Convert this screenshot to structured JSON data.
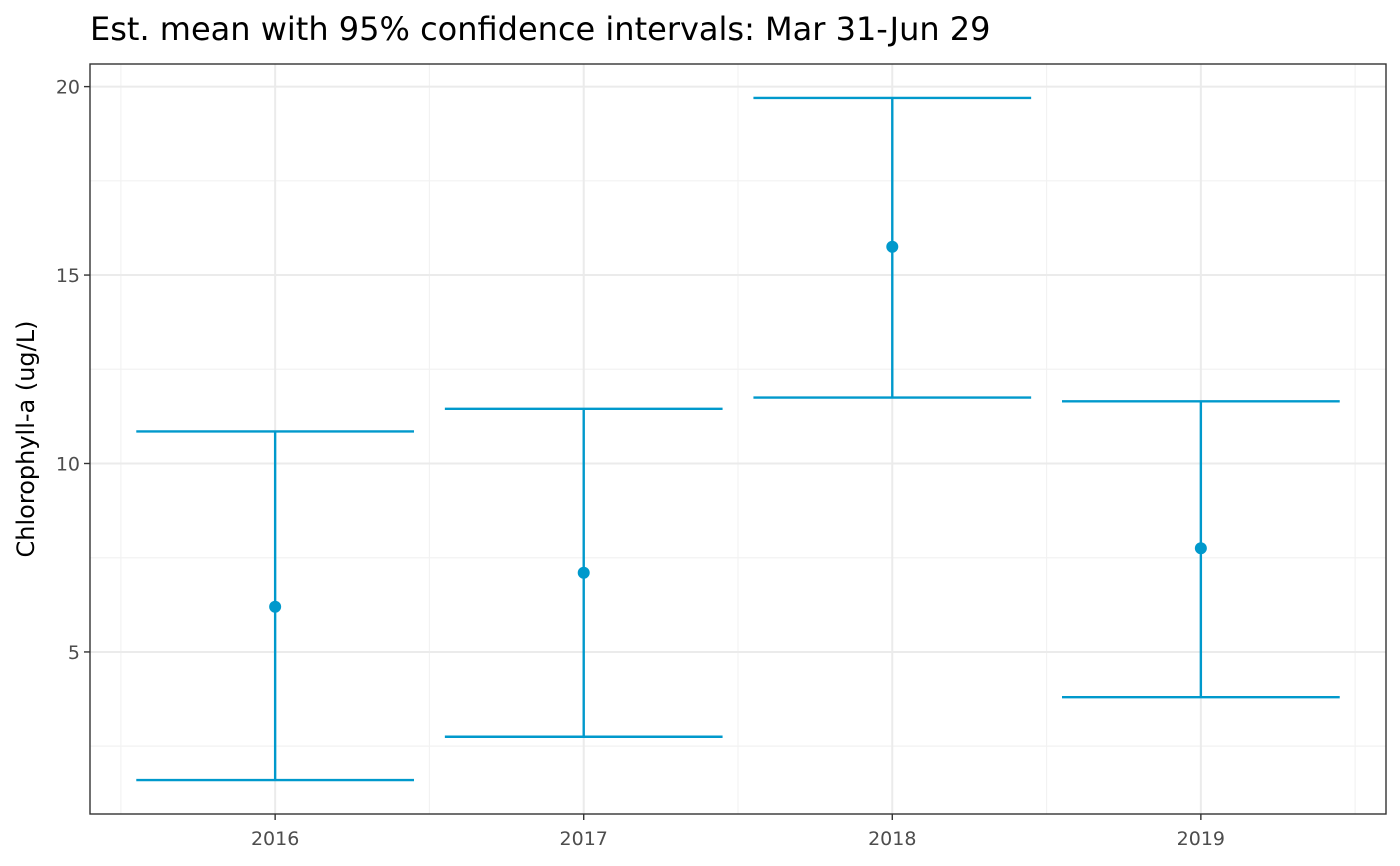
{
  "chart_data": {
    "type": "errorbar",
    "title": "Est. mean with 95% confidence intervals: Mar 31-Jun 29",
    "xlabel": "",
    "ylabel": "Chlorophyll-a (ug/L)",
    "categories": [
      "2016",
      "2017",
      "2018",
      "2019"
    ],
    "mean": [
      6.2,
      7.1,
      15.75,
      7.75
    ],
    "lower": [
      1.6,
      2.75,
      11.75,
      3.8
    ],
    "upper": [
      10.85,
      11.45,
      19.7,
      11.65
    ],
    "ylim": [
      0.7,
      20.6
    ],
    "yticks": [
      5,
      10,
      15,
      20
    ],
    "ytick_labels": [
      "5",
      "10",
      "15",
      "20"
    ],
    "grid": true,
    "legend": "none",
    "color": "#0099CC"
  }
}
